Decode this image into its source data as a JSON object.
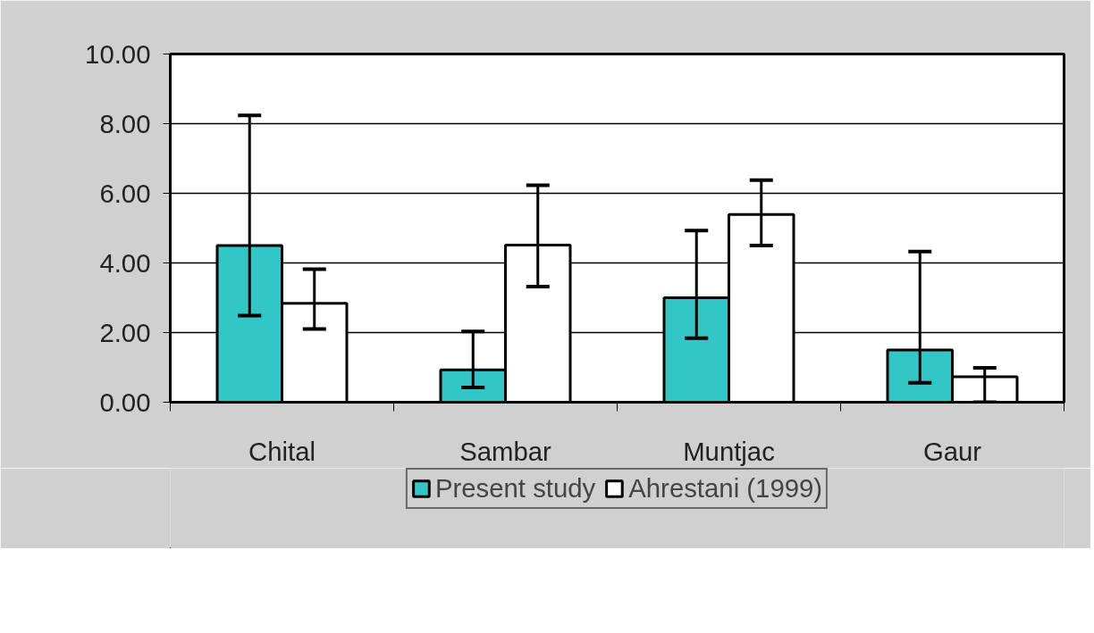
{
  "chart_data": {
    "type": "bar",
    "categories": [
      "Chital",
      "Sambar",
      "Muntjac",
      "Gaur"
    ],
    "series": [
      {
        "name": "Present study",
        "color": "#33c6c6",
        "values": [
          4.5,
          0.93,
          3.0,
          1.5
        ],
        "errors": [
          [
            2.49,
            8.24
          ],
          [
            0.42,
            2.03
          ],
          [
            1.84,
            4.93
          ],
          [
            0.56,
            4.33
          ]
        ]
      },
      {
        "name": "Ahrestani (1999)",
        "color": "#ffffff",
        "values": [
          2.84,
          4.51,
          5.39,
          0.73
        ],
        "errors": [
          [
            2.1,
            3.82
          ],
          [
            3.32,
            6.23
          ],
          [
            4.5,
            6.38
          ],
          [
            0,
            0.99
          ]
        ]
      }
    ],
    "ylim": [
      0,
      10
    ],
    "yticks": [
      {
        "value": 0,
        "label": "0.00"
      },
      {
        "value": 2,
        "label": "2.00"
      },
      {
        "value": 4,
        "label": "4.00"
      },
      {
        "value": 6,
        "label": "6.00"
      },
      {
        "value": 8,
        "label": "8.00"
      },
      {
        "value": 10,
        "label": "10.00"
      }
    ],
    "grid": "y",
    "legend": "bottom"
  }
}
